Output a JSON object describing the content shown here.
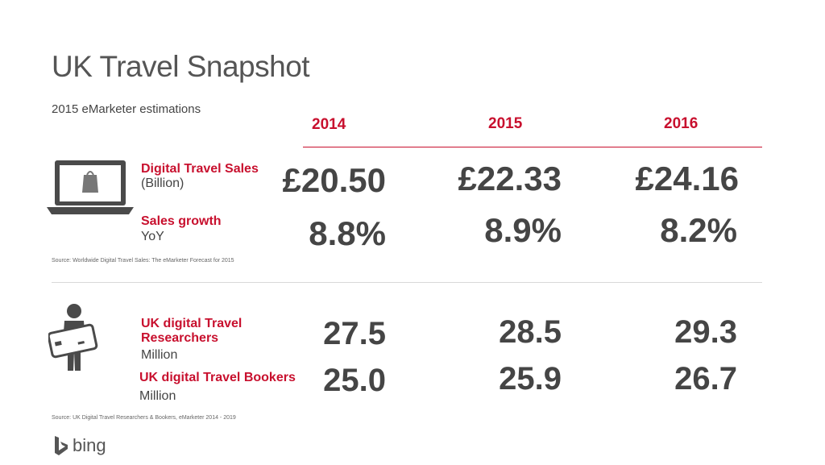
{
  "title": "UK Travel Snapshot",
  "subtitle": "2015 eMarketer estimations",
  "years": [
    "2014",
    "2015",
    "2016"
  ],
  "colors": {
    "accent": "#c8102e",
    "text": "#454545",
    "icon": "#4a4a4a"
  },
  "section1": {
    "icon": "laptop-shopping-bag-icon",
    "sales_label_red": "Digital Travel Sales",
    "sales_label_unit": "(Billion)",
    "growth_label_red": "Sales growth",
    "growth_label_unit": "YoY",
    "sales_values": [
      "£20.50",
      "£22.33",
      "£24.16"
    ],
    "growth_values": [
      "8.8%",
      "8.9%",
      "8.2%"
    ],
    "source": "Source: Worldwide Digital Travel Sales: The eMarketer Forecast for 2015"
  },
  "section2": {
    "icon": "person-credit-card-icon",
    "researchers_label_red": "UK digital Travel Researchers",
    "researchers_label_unit": "Million",
    "bookers_label_red": "UK digital Travel Bookers",
    "bookers_label_unit": "Million",
    "researchers_values": [
      "27.5",
      "28.5",
      "29.3"
    ],
    "bookers_values": [
      "25.0",
      "25.9",
      "26.7"
    ],
    "source": "Source: UK Digital Travel Researchers & Bookers, eMarketer 2014 - 2019"
  },
  "footer": {
    "logo_icon": "bing-logo-icon",
    "brand": "bing"
  }
}
